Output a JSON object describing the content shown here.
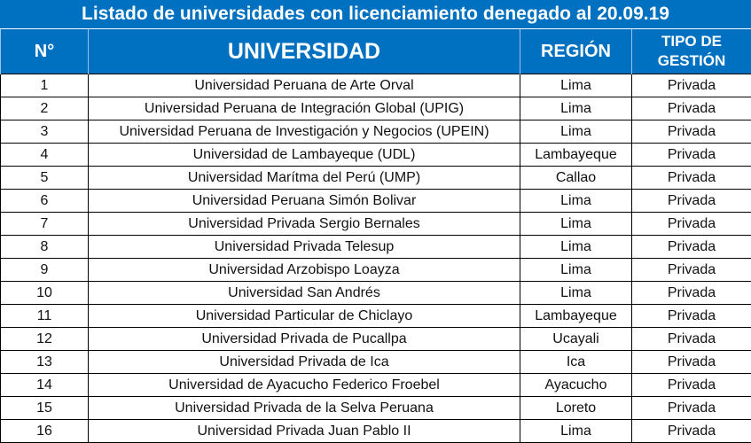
{
  "title": "Listado de universidades con licenciamiento denegado al 20.09.19",
  "header_color": "#0070C0",
  "columns": [
    "N°",
    "UNIVERSIDAD",
    "REGIÓN",
    "TIPO DE GESTIÓN"
  ],
  "rows": [
    {
      "n": "1",
      "universidad": "Universidad Peruana de Arte Orval",
      "region": "Lima",
      "tipo": "Privada"
    },
    {
      "n": "2",
      "universidad": "Universidad Peruana de Integración Global  (UPIG)",
      "region": "Lima",
      "tipo": "Privada"
    },
    {
      "n": "3",
      "universidad": "Universidad Peruana de Investigación y Negocios (UPEIN)",
      "region": "Lima",
      "tipo": "Privada"
    },
    {
      "n": "4",
      "universidad": "Universidad de Lambayeque  (UDL)",
      "region": "Lambayeque",
      "tipo": "Privada"
    },
    {
      "n": "5",
      "universidad": "Universidad Marítma del Perú (UMP)",
      "region": "Callao",
      "tipo": "Privada"
    },
    {
      "n": "6",
      "universidad": "Universidad Peruana Simón Bolivar",
      "region": "Lima",
      "tipo": "Privada"
    },
    {
      "n": "7",
      "universidad": "Universidad Privada Sergio Bernales",
      "region": "Lima",
      "tipo": "Privada"
    },
    {
      "n": "8",
      "universidad": "Universidad Privada Telesup",
      "region": "Lima",
      "tipo": "Privada"
    },
    {
      "n": "9",
      "universidad": "Universidad Arzobispo Loayza",
      "region": "Lima",
      "tipo": "Privada"
    },
    {
      "n": "10",
      "universidad": "Universidad San Andrés",
      "region": "Lima",
      "tipo": "Privada"
    },
    {
      "n": "11",
      "universidad": "Universidad Particular de Chiclayo",
      "region": "Lambayeque",
      "tipo": "Privada"
    },
    {
      "n": "12",
      "universidad": "Universidad Privada de Pucallpa",
      "region": "Ucayali",
      "tipo": "Privada"
    },
    {
      "n": "13",
      "universidad": "Universidad Privada de Ica",
      "region": "Ica",
      "tipo": "Privada"
    },
    {
      "n": "14",
      "universidad": "Universidad de Ayacucho Federico Froebel",
      "region": "Ayacucho",
      "tipo": "Privada"
    },
    {
      "n": "15",
      "universidad": "Universidad Privada de la Selva Peruana",
      "region": "Loreto",
      "tipo": "Privada"
    },
    {
      "n": "16",
      "universidad": "Universidad Privada Juan Pablo II",
      "region": "Lima",
      "tipo": "Privada"
    }
  ]
}
